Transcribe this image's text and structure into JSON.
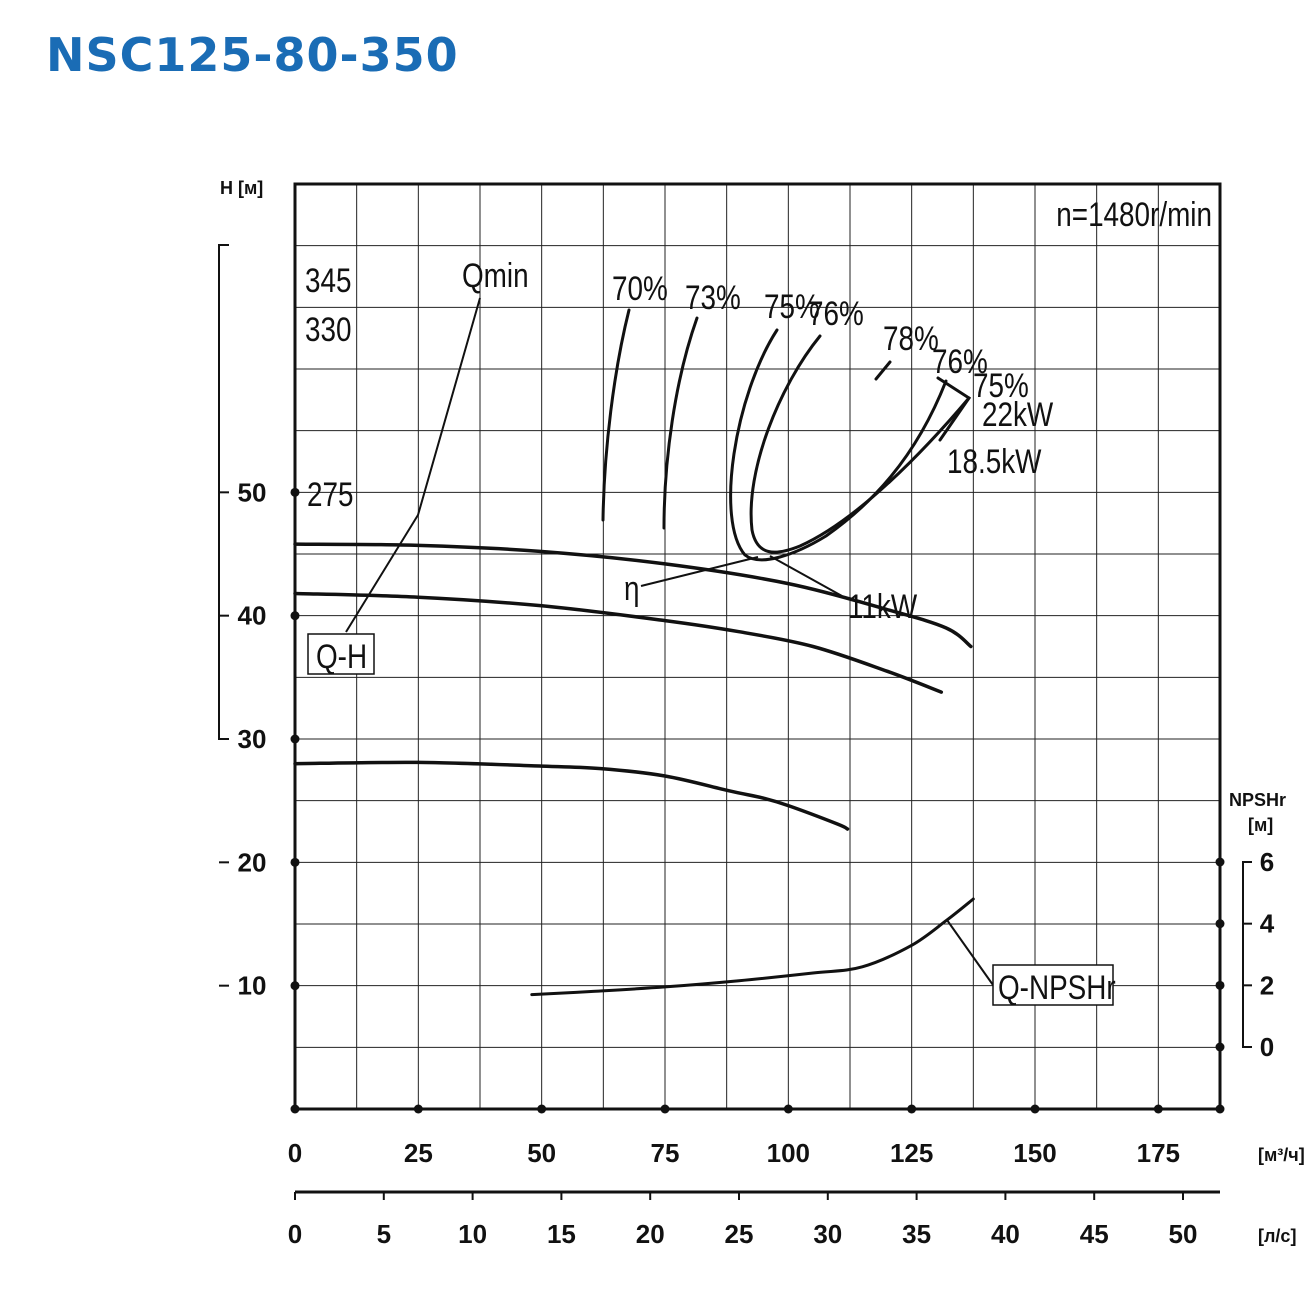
{
  "title": "NSC125-80-350",
  "speed_note": "n=1480r/min",
  "axes": {
    "h_label": "H [м]",
    "npsh_label_1": "NPSHr",
    "npsh_label_2": "[м]",
    "q_unit_m3h": "[м³/ч]",
    "q_unit_ls": "[л/с]"
  },
  "chart_data": {
    "type": "line",
    "x_m3h_ticks": [
      0,
      25,
      50,
      75,
      100,
      125,
      150,
      175
    ],
    "x_ls_ticks": [
      0,
      5,
      10,
      15,
      20,
      25,
      30,
      35,
      40,
      45,
      50
    ],
    "xlim": [
      0,
      187.5
    ],
    "ylim_H": [
      0,
      75
    ],
    "y_H_ticks": [
      10,
      20,
      30,
      40,
      50
    ],
    "y_npsh_ticks": [
      0,
      2,
      4,
      6
    ],
    "grid": true,
    "qh_curves": [
      {
        "name": "345",
        "x": [
          0,
          25,
          50,
          75,
          100,
          120,
          132,
          137
        ],
        "y": [
          45.8,
          45.7,
          45.2,
          44.2,
          42.6,
          40.5,
          39,
          37.5
        ]
      },
      {
        "name": "330",
        "x": [
          0,
          25,
          50,
          75,
          90,
          105,
          120,
          131
        ],
        "y": [
          41.8,
          41.5,
          40.8,
          39.6,
          38.7,
          37.5,
          35.5,
          33.8
        ]
      },
      {
        "name": "275",
        "x": [
          0,
          25,
          50,
          62,
          75,
          88,
          95,
          100,
          110,
          112
        ],
        "y": [
          28,
          28.1,
          27.8,
          27.6,
          27,
          25.8,
          25.2,
          24.6,
          23.1,
          22.7
        ]
      }
    ],
    "efficiency_labels": [
      "70%",
      "73%",
      "75%",
      "76%",
      "78%",
      "76%",
      "75%"
    ],
    "power_labels": [
      "22kW",
      "18.5kW",
      "11kW"
    ],
    "annotations": [
      "Qmin",
      "Q-H",
      "η",
      "Q-NPSHr"
    ],
    "npsh_curve": {
      "name": "Q-NPSHr",
      "x": [
        48,
        60,
        75,
        90,
        105,
        115,
        125,
        132,
        137.5
      ],
      "y": [
        1.7,
        1.8,
        1.95,
        2.15,
        2.4,
        2.6,
        3.3,
        4.1,
        4.8
      ]
    }
  }
}
